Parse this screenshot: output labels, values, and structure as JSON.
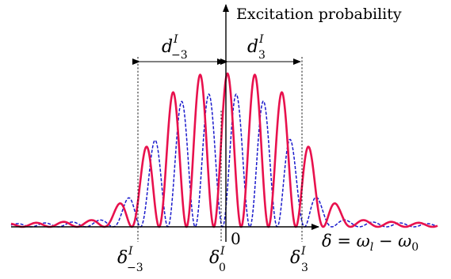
{
  "figure": {
    "yaxis_label": "Excitation probability",
    "xaxis_label": {
      "delta": "δ",
      "equals": " = ",
      "omega1": "ω",
      "sub1": "l",
      "minus": " − ",
      "omega2": "ω",
      "sub2": "0"
    },
    "origin_label": "0",
    "distance_labels": [
      {
        "base": "d",
        "sup": "I",
        "sub": "−3"
      },
      {
        "base": "d",
        "sup": "I",
        "sub": "3"
      }
    ],
    "delta_labels": [
      {
        "base": "δ",
        "sup": "I",
        "sub": "−3"
      },
      {
        "base": "δ",
        "sup": "I",
        "sub": "0"
      },
      {
        "base": "δ",
        "sup": "I",
        "sub": "3"
      }
    ],
    "colors": {
      "solid_curve": "#e8114d",
      "dashed_curve": "#1a1acc",
      "axis": "#000000"
    }
  }
}
